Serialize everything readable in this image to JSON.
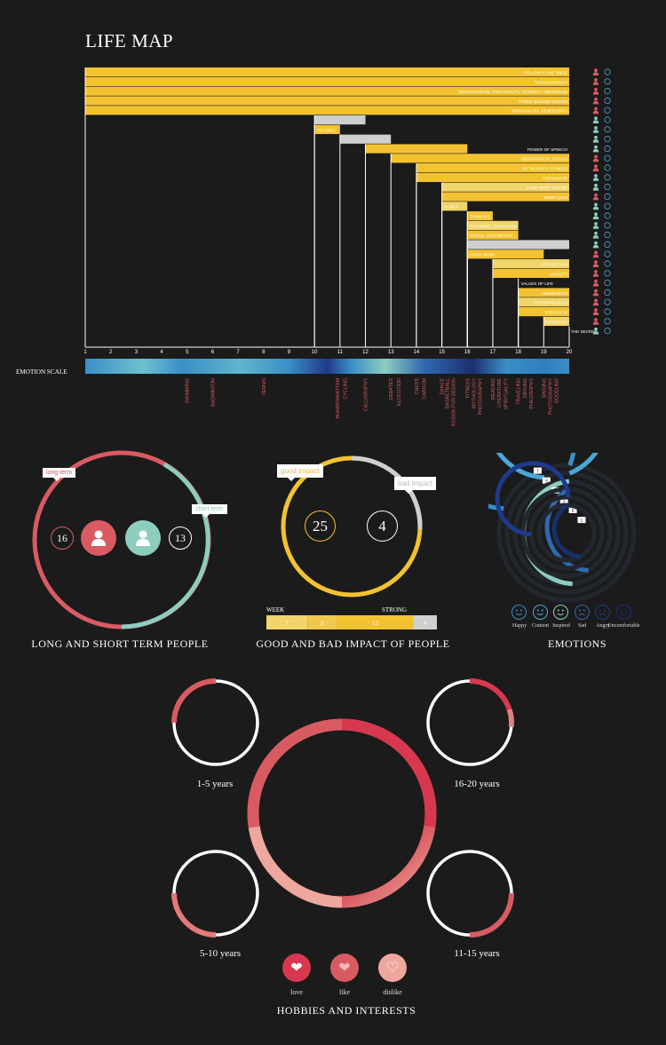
{
  "page_title": "LIFE MAP",
  "colors": {
    "gold": "#f2c230",
    "gold_light": "#f1d46a",
    "gray": "#cfcfcf",
    "red": "#d95b62",
    "teal": "#8dcdc0",
    "blue": "#3a8fc6",
    "pink": "#d8384f"
  },
  "chart_data": [
    {
      "type": "bar",
      "title": "LIFE MAP",
      "orientation": "horizontal-timeline",
      "x_ticks": [
        "1",
        "2",
        "3",
        "4",
        "5",
        "6",
        "7",
        "8",
        "9",
        "10",
        "11",
        "12",
        "13",
        "14",
        "15",
        "16",
        "17",
        "18",
        "19",
        "20"
      ],
      "xlim": [
        1,
        20
      ],
      "values_of_life": [
        {
          "label": "YOU ONLY LIVE ONCE",
          "start": 1,
          "end": 20,
          "person": "red",
          "emotion": "content"
        },
        {
          "label": "TRANSPARENCY",
          "start": 1,
          "end": 20,
          "person": "red",
          "emotion": "content"
        },
        {
          "label": "ORGANISATION, PUNCTUALITY, HONESTY, OBEDIENCE",
          "start": 1,
          "end": 20,
          "person": "red",
          "emotion": "happy"
        },
        {
          "label": "THREE GOLDEN WORDS",
          "start": 1,
          "end": 20,
          "person": "red",
          "emotion": "happy"
        },
        {
          "label": "SPIRITUALITY, GENEROSITY",
          "start": 1,
          "end": 20,
          "person": "red",
          "emotion": "content"
        },
        {
          "label": "",
          "start": 10,
          "end": 12,
          "person": "teal",
          "emotion": "uncomfortable",
          "bad": true
        },
        {
          "label": "READING",
          "start": 10,
          "end": 11,
          "person": "teal",
          "emotion": "angry"
        },
        {
          "label": "",
          "start": 11,
          "end": 13,
          "person": "teal",
          "emotion": "uncomfortable",
          "bad": true
        },
        {
          "label": "POWER OF SPEECH",
          "start": 12,
          "end": 16,
          "person": "teal",
          "emotion": "inspired"
        },
        {
          "label": "OBSERVATION, LOGICS",
          "start": 13,
          "end": 20,
          "person": "red",
          "emotion": "content"
        },
        {
          "label": "MYTHOLOGY, FITNESS",
          "start": 14,
          "end": 20,
          "person": "red",
          "emotion": "content"
        },
        {
          "label": "FRIENDSHIP",
          "start": 14,
          "end": 20,
          "person": "teal",
          "emotion": "content"
        },
        {
          "label": "LOVE WHAT YOU DO",
          "start": 15,
          "end": 20,
          "person": "teal",
          "emotion": "inspired"
        },
        {
          "label": "KEEP CALM",
          "start": 15,
          "end": 20,
          "person": "red",
          "emotion": "happy"
        },
        {
          "label": "DANCE",
          "start": 15,
          "end": 16,
          "person": "teal",
          "emotion": "angry"
        },
        {
          "label": "THINK BIG",
          "start": 16,
          "end": 17,
          "person": "teal",
          "emotion": "angry"
        },
        {
          "label": "PLANNING, EXECUTION",
          "start": 16,
          "end": 18,
          "person": "teal",
          "emotion": "angry"
        },
        {
          "label": "DIGITAL SOFTWARES",
          "start": 16,
          "end": 18,
          "person": "teal",
          "emotion": "angry"
        },
        {
          "label": "",
          "start": 16,
          "end": 20,
          "person": "teal",
          "emotion": "uncomfortable",
          "bad": true
        },
        {
          "label": "HARD WORK",
          "start": 16,
          "end": 19,
          "person": "red",
          "emotion": "angry"
        },
        {
          "label": "PERFECTION",
          "start": 17,
          "end": 20,
          "person": "red",
          "emotion": "angry"
        },
        {
          "label": "LOYALTY",
          "start": 17,
          "end": 20,
          "person": "red",
          "emotion": "happy"
        },
        {
          "label": "VALUES OF LIFE",
          "start": 18,
          "end": 20,
          "person": "red",
          "emotion": "content",
          "dark": true
        },
        {
          "label": "AWARENESS",
          "start": 18,
          "end": 20,
          "person": "red",
          "emotion": "content"
        },
        {
          "label": "TRUTHFULNESS",
          "start": 18,
          "end": 20,
          "person": "red",
          "emotion": "content"
        },
        {
          "label": "PRECISION",
          "start": 18,
          "end": 20,
          "person": "red",
          "emotion": "content"
        },
        {
          "label": "POSITIVITY",
          "start": 19,
          "end": 20,
          "person": "red",
          "emotion": "happy"
        },
        {
          "label": "THE SECRET",
          "start": 20,
          "end": 20.5,
          "person": "teal",
          "emotion": "content",
          "dark": true
        }
      ],
      "emotion_scale_label": "EMOTION SCALE",
      "hobbies": [
        {
          "label": "SWIMMING",
          "x": 5
        },
        {
          "label": "BADMINTON",
          "x": 6
        },
        {
          "label": "TENNIS",
          "x": 8
        },
        {
          "label": "BHARATANATYAM",
          "x": 10.9
        },
        {
          "label": "CYCLING",
          "x": 11.2
        },
        {
          "label": "CALLIGRAPHY",
          "x": 12
        },
        {
          "label": "DEBATES",
          "x": 13
        },
        {
          "label": "ELOCUTION",
          "x": 13.3
        },
        {
          "label": "CHESS",
          "x": 14
        },
        {
          "label": "CARROM",
          "x": 14.3
        },
        {
          "label": "DANCE",
          "x": 15
        },
        {
          "label": "BASKETBALL",
          "x": 15.2
        },
        {
          "label": "PASSION FOR DESIGN",
          "x": 15.45
        },
        {
          "label": "FITNESS",
          "x": 16
        },
        {
          "label": "MYTHOLOGY",
          "x": 16.25
        },
        {
          "label": "PHOTOGRAPHY",
          "x": 16.5
        },
        {
          "label": "READING",
          "x": 17
        },
        {
          "label": "LITERATURE",
          "x": 17.25
        },
        {
          "label": "SPIRITUALITY",
          "x": 17.5
        },
        {
          "label": "TRAVELING",
          "x": 18
        },
        {
          "label": "DRIVING",
          "x": 18.25
        },
        {
          "label": "PHILOSOPHY",
          "x": 18.5
        },
        {
          "label": "SINGING",
          "x": 19
        },
        {
          "label": "PHOTOGRAPHY",
          "x": 19.25
        },
        {
          "label": "DOODLING",
          "x": 19.5
        }
      ]
    },
    {
      "type": "pie",
      "title": "LONG AND SHORT TERM PEOPLE",
      "slices": [
        {
          "name": "long term",
          "value": 16
        },
        {
          "name": "short term",
          "value": 13
        }
      ]
    },
    {
      "type": "pie",
      "title": "GOOD AND BAD IMPACT OF PEOPLE",
      "slices": [
        {
          "name": "good impact",
          "value": 25
        },
        {
          "name": "bad impact",
          "value": 4
        }
      ],
      "scale_labels": [
        "WEEK",
        "STRONG"
      ],
      "scale_values": [
        7,
        5,
        13,
        4
      ]
    },
    {
      "type": "pie",
      "title": "EMOTIONS",
      "emotions": [
        {
          "name": "Happy",
          "value": 7
        },
        {
          "name": "Content",
          "value": 9
        },
        {
          "name": "Inspired",
          "value": 2
        },
        {
          "name": "Sad",
          "value": 1
        },
        {
          "name": "Angry",
          "value": 6
        },
        {
          "name": "Uncomfortable",
          "value": 1
        }
      ]
    },
    {
      "type": "pie",
      "title": "HOBBIES AND INTERESTS",
      "periods": [
        {
          "label": "1-5 years",
          "love": 0,
          "like": 0.2,
          "dislike": 0.05
        },
        {
          "label": "16-20 years",
          "love": 0.2,
          "like": 0.05,
          "dislike": 0.05
        },
        {
          "label": "5-10 years",
          "love": 0,
          "like": 0.15,
          "dislike": 0.08
        },
        {
          "label": "11-15 years",
          "love": 0.05,
          "like": 0.15,
          "dislike": 0.05
        }
      ],
      "legend": [
        "love",
        "like",
        "dislike"
      ]
    }
  ]
}
